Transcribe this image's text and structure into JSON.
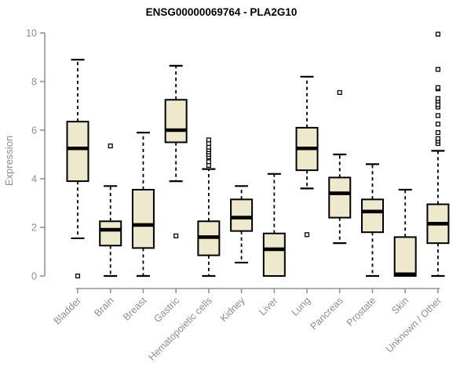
{
  "window": {
    "title": "ENSG00000069764 - PLA2G10"
  },
  "chart_data": {
    "type": "boxplot",
    "title": "ENSG00000069764 - PLA2G10",
    "xlabel": "",
    "ylabel": "Expression",
    "ylim": [
      0,
      10
    ],
    "yticks": [
      0,
      2,
      4,
      6,
      8,
      10
    ],
    "grid": false,
    "legend": "none",
    "colors": {
      "box_fill": "#EEE8CD",
      "box_stroke": "#000000",
      "median": "#000000",
      "whisker": "#000000",
      "outlier_fill": "#ffffff",
      "outlier_stroke": "#000000",
      "axis": "#949494",
      "axis_text": "#8e8e8e",
      "title_text": "#000000",
      "background": "#ffffff"
    },
    "categories": [
      "Bladder",
      "Brain",
      "Breast",
      "Gastric",
      "Hematopoietic cells",
      "Kidney",
      "Liver",
      "Lung",
      "Pancreas",
      "Prostate",
      "Skin",
      "Unknown / Other"
    ],
    "series": [
      {
        "category": "Bladder",
        "whisker_low": 1.55,
        "q1": 3.9,
        "median": 5.25,
        "q3": 6.35,
        "whisker_high": 8.9,
        "outliers": [
          0.0
        ]
      },
      {
        "category": "Brain",
        "whisker_low": 0.0,
        "q1": 1.25,
        "median": 1.9,
        "q3": 2.25,
        "whisker_high": 3.7,
        "outliers": [
          5.35
        ]
      },
      {
        "category": "Breast",
        "whisker_low": 0.0,
        "q1": 1.15,
        "median": 2.1,
        "q3": 3.55,
        "whisker_high": 5.9,
        "outliers": []
      },
      {
        "category": "Gastric",
        "whisker_low": 3.9,
        "q1": 5.5,
        "median": 6.0,
        "q3": 7.25,
        "whisker_high": 8.65,
        "outliers": [
          1.65
        ]
      },
      {
        "category": "Hematopoietic cells",
        "whisker_low": 0.0,
        "q1": 0.85,
        "median": 1.6,
        "q3": 2.25,
        "whisker_high": 4.4,
        "outliers": [
          4.55,
          4.7,
          4.9,
          5.0,
          5.1,
          5.2,
          5.3,
          5.45,
          5.6
        ]
      },
      {
        "category": "Kidney",
        "whisker_low": 0.55,
        "q1": 1.85,
        "median": 2.4,
        "q3": 3.15,
        "whisker_high": 3.7,
        "outliers": []
      },
      {
        "category": "Liver",
        "whisker_low": 0.0,
        "q1": 0.0,
        "median": 1.1,
        "q3": 1.75,
        "whisker_high": 4.2,
        "outliers": []
      },
      {
        "category": "Lung",
        "whisker_low": 3.6,
        "q1": 4.35,
        "median": 5.25,
        "q3": 6.1,
        "whisker_high": 8.2,
        "outliers": [
          1.7
        ]
      },
      {
        "category": "Pancreas",
        "whisker_low": 1.35,
        "q1": 2.4,
        "median": 3.4,
        "q3": 4.05,
        "whisker_high": 5.0,
        "outliers": [
          7.55
        ]
      },
      {
        "category": "Prostate",
        "whisker_low": 0.0,
        "q1": 1.8,
        "median": 2.65,
        "q3": 3.15,
        "whisker_high": 4.6,
        "outliers": []
      },
      {
        "category": "Skin",
        "whisker_low": 0.0,
        "q1": 0.0,
        "median": 0.07,
        "q3": 1.6,
        "whisker_high": 3.55,
        "outliers": []
      },
      {
        "category": "Unknown / Other",
        "whisker_low": 0.0,
        "q1": 1.35,
        "median": 2.15,
        "q3": 2.95,
        "whisker_high": 5.15,
        "outliers": [
          5.45,
          5.55,
          5.65,
          5.9,
          6.25,
          6.6,
          6.95,
          7.05,
          7.2,
          7.3,
          7.7,
          7.75,
          8.5,
          9.95
        ]
      }
    ]
  }
}
